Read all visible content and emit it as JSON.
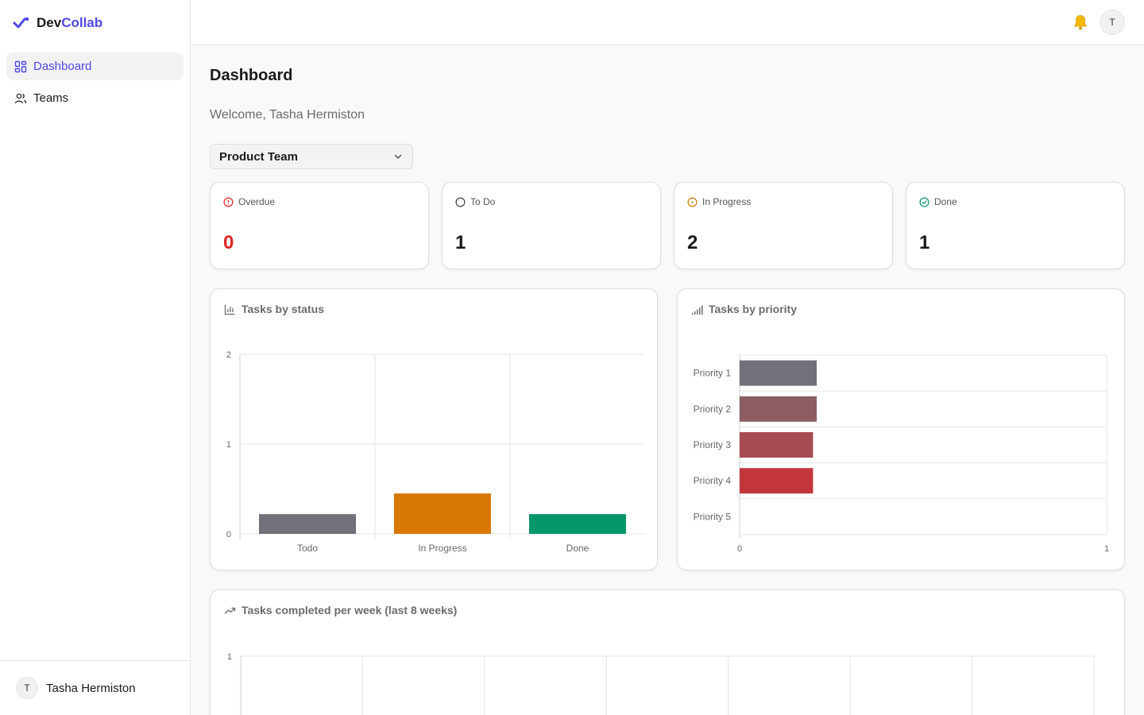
{
  "app": {
    "brand_part1": "Dev",
    "brand_part2": "Collab",
    "accent_color": "#4f46e5"
  },
  "sidebar": {
    "items": [
      {
        "label": "Dashboard",
        "icon": "layout-grid-icon",
        "active": true
      },
      {
        "label": "Teams",
        "icon": "users-icon",
        "active": false
      }
    ],
    "user": {
      "initial": "T",
      "name": "Tasha Hermiston"
    }
  },
  "topbar": {
    "notification_icon": "bell-icon",
    "avatar_initial": "T"
  },
  "main": {
    "title": "Dashboard",
    "welcome": "Welcome, Tasha Hermiston",
    "team_select": {
      "value": "Product Team"
    },
    "stats": [
      {
        "label": "Overdue",
        "value": "0",
        "icon": "alert-circle-icon",
        "color": "#dc2626"
      },
      {
        "label": "To Do",
        "value": "1",
        "icon": "circle-icon",
        "color": "#1a1a1a"
      },
      {
        "label": "In Progress",
        "value": "2",
        "icon": "clock-circle-icon",
        "color": "#1a1a1a"
      },
      {
        "label": "Done",
        "value": "1",
        "icon": "check-circle-icon",
        "color": "#1a1a1a"
      }
    ],
    "panels": {
      "status_title": "Tasks by status",
      "priority_title": "Tasks by priority",
      "weekly_title": "Tasks completed per week (last 8 weeks)"
    }
  },
  "chart_data": [
    {
      "type": "bar",
      "title": "Tasks by status",
      "categories": [
        "Todo",
        "In Progress",
        "Done"
      ],
      "values": [
        0.22,
        0.45,
        0.22
      ],
      "colors": [
        "#71717a",
        "#d97706",
        "#059669"
      ],
      "ylim": [
        0,
        2
      ],
      "yticks": [
        "0",
        "1",
        "2"
      ],
      "grid": true
    },
    {
      "type": "bar",
      "orientation": "horizontal",
      "title": "Tasks by priority",
      "categories": [
        "Priority 1",
        "Priority 2",
        "Priority 3",
        "Priority 4",
        "Priority 5"
      ],
      "values": [
        0.21,
        0.21,
        0.2,
        0.2,
        0
      ],
      "colors": [
        "#71717a",
        "#8b5d62",
        "#a84a52",
        "#c2363a",
        "#dc2626"
      ],
      "xlim": [
        0,
        1
      ],
      "xticks": [
        "0",
        "1"
      ],
      "grid": true
    },
    {
      "type": "line",
      "title": "Tasks completed per week (last 8 weeks)",
      "ylim": [
        0,
        1
      ],
      "yticks": [
        "1"
      ],
      "x_count": 8,
      "grid": true
    }
  ]
}
